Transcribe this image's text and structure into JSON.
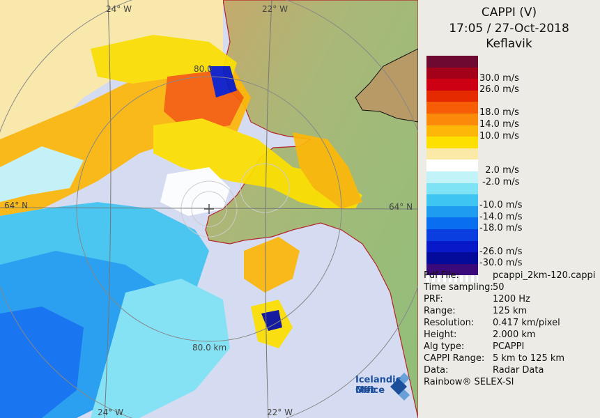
{
  "header": {
    "product": "CAPPI (V)",
    "datetime": "17:05 / 27-Oct-2018",
    "station": "Keflavik"
  },
  "legend": [
    {
      "color": "#6e0a32",
      "label": ""
    },
    {
      "color": "#a3001a",
      "label": "30.0 m/s"
    },
    {
      "color": "#cc0012",
      "label": "26.0 m/s"
    },
    {
      "color": "#e62a00",
      "label": ""
    },
    {
      "color": "#f75d06",
      "label": "18.0 m/s"
    },
    {
      "color": "#fb8a0b",
      "label": "14.0 m/s"
    },
    {
      "color": "#fdb708",
      "label": "10.0 m/s"
    },
    {
      "color": "#fde000",
      "label": ""
    },
    {
      "color": "#fbeaa7",
      "label": ""
    },
    {
      "color": "#ffffff",
      "label": "  2.0 m/s"
    },
    {
      "color": "#c2f3f8",
      "label": " -2.0 m/s"
    },
    {
      "color": "#7fe3f6",
      "label": ""
    },
    {
      "color": "#3fc5f1",
      "label": "-10.0 m/s"
    },
    {
      "color": "#1e9cf0",
      "label": "-14.0 m/s"
    },
    {
      "color": "#0a6ef0",
      "label": "-18.0 m/s"
    },
    {
      "color": "#0a3ee0",
      "label": ""
    },
    {
      "color": "#0719c8",
      "label": "-26.0 m/s"
    },
    {
      "color": "#040b9a",
      "label": "-30.0 m/s"
    },
    {
      "color": "#3a0a7a",
      "label": ""
    }
  ],
  "info": [
    {
      "key": "Pdf File:",
      "value": "pcappi_2km-120.cappi"
    },
    {
      "key": "Time sampling:",
      "value": "50"
    },
    {
      "key": "PRF:",
      "value": "1200 Hz"
    },
    {
      "key": "Range:",
      "value": "125 km"
    },
    {
      "key": "Resolution:",
      "value": "0.417 km/pixel"
    },
    {
      "key": "Height:",
      "value": "2.000 km"
    },
    {
      "key": "Alg type:",
      "value": "PCAPPI"
    },
    {
      "key": "CAPPI Range:",
      "value": "5 km to 125 km"
    },
    {
      "key": "Data:",
      "value": "Radar Data"
    }
  ],
  "footer": "Rainbow® SELEX-SI",
  "map_labels": {
    "lon_top_left": "24° W",
    "lon_top_right": "22° W",
    "lon_bottom_left": "24° W",
    "lon_bottom_right": "22° W",
    "lat_left": "64° N",
    "lat_right": "64° N",
    "range_ring_top": "80.0",
    "range_ring_bottom": "80.0 km"
  },
  "logo": {
    "line1": "Icelandic Met",
    "line2": "Office"
  }
}
